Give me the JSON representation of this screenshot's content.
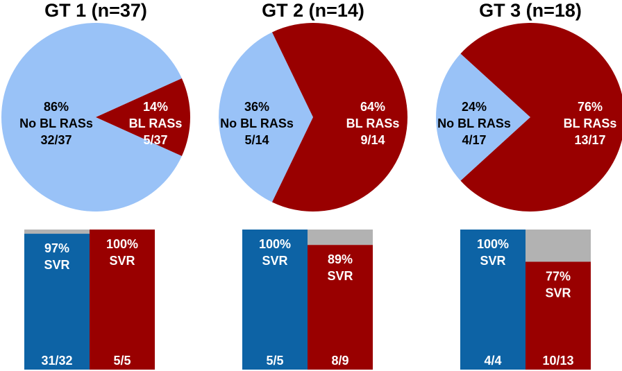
{
  "colors": {
    "no_bl_pie": "#99c2f7",
    "bl_pie": "#990000",
    "no_bl_bar": "#0d63a5",
    "bl_bar": "#990000",
    "non_svr": "#b2b2b2",
    "label_dark": "#000000",
    "label_light": "#ffffff"
  },
  "chart_data": [
    {
      "type": "pie",
      "title": "GT 1 (n=37)",
      "slices": [
        {
          "name": "No BL RASs",
          "percent_label": "86%",
          "count_label": "32/37",
          "value": 32,
          "color": "#99c2f7"
        },
        {
          "name": "BL RASs",
          "percent_label": "14%",
          "count_label": "5/37",
          "value": 5,
          "color": "#990000"
        }
      ],
      "bars": [
        {
          "group": "No BL RASs",
          "svr_percent": 97,
          "percent_label": "97%",
          "svr_label": "SVR",
          "count_label": "31/32",
          "color": "#0d63a5"
        },
        {
          "group": "BL RASs",
          "svr_percent": 100,
          "percent_label": "100%",
          "svr_label": "SVR",
          "count_label": "5/5",
          "color": "#990000"
        }
      ]
    },
    {
      "type": "pie",
      "title": "GT 2 (n=14)",
      "slices": [
        {
          "name": "No BL RASs",
          "percent_label": "36%",
          "count_label": "5/14",
          "value": 5,
          "color": "#99c2f7"
        },
        {
          "name": "BL RASs",
          "percent_label": "64%",
          "count_label": "9/14",
          "value": 9,
          "color": "#990000"
        }
      ],
      "bars": [
        {
          "group": "No BL RASs",
          "svr_percent": 100,
          "percent_label": "100%",
          "svr_label": "SVR",
          "count_label": "5/5",
          "color": "#0d63a5"
        },
        {
          "group": "BL RASs",
          "svr_percent": 89,
          "percent_label": "89%",
          "svr_label": "SVR",
          "count_label": "8/9",
          "color": "#990000"
        }
      ]
    },
    {
      "type": "pie",
      "title": "GT 3 (n=18)",
      "slices": [
        {
          "name": "No BL RASs",
          "percent_label": "24%",
          "count_label": "4/17",
          "value": 4,
          "color": "#99c2f7"
        },
        {
          "name": "BL RASs",
          "percent_label": "76%",
          "count_label": "13/17",
          "value": 13,
          "color": "#990000"
        }
      ],
      "bars": [
        {
          "group": "No BL RASs",
          "svr_percent": 100,
          "percent_label": "100%",
          "svr_label": "SVR",
          "count_label": "4/4",
          "color": "#0d63a5"
        },
        {
          "group": "BL RASs",
          "svr_percent": 77,
          "percent_label": "77%",
          "svr_label": "SVR",
          "count_label": "10/13",
          "color": "#990000"
        }
      ]
    }
  ]
}
